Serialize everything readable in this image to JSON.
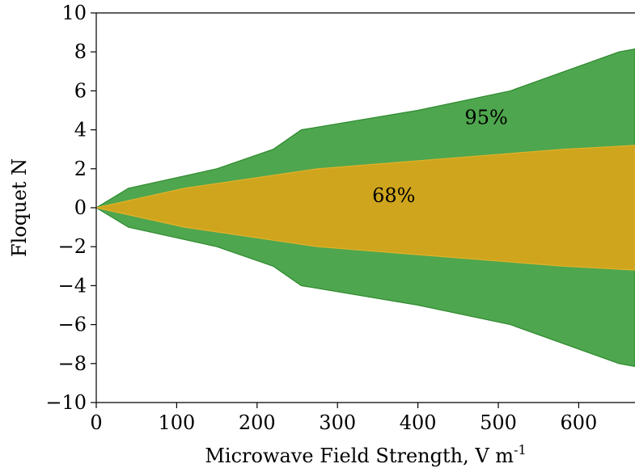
{
  "chart_data": {
    "type": "area",
    "title": "",
    "xlabel": "Microwave Field Strength, V m",
    "xlabel_superscript": "-1",
    "ylabel": "Floquet N",
    "xlim": [
      0,
      670
    ],
    "ylim": [
      -10,
      10
    ],
    "xticks": [
      0,
      100,
      200,
      300,
      400,
      500,
      600
    ],
    "yticks": [
      -10,
      -8,
      -6,
      -4,
      -2,
      0,
      2,
      4,
      6,
      8,
      10
    ],
    "xtick_labels": [
      "0",
      "100",
      "200",
      "300",
      "400",
      "500",
      "600"
    ],
    "ytick_labels": [
      "−10",
      "−8",
      "−6",
      "−4",
      "−2",
      "0",
      "2",
      "4",
      "6",
      "8",
      "10"
    ],
    "grid": false,
    "series": [
      {
        "label": "95%",
        "color": "#4ea64e",
        "x": [
          0,
          40,
          150,
          220,
          255,
          400,
          515,
          650,
          670
        ],
        "upper": [
          0,
          1,
          2,
          3,
          4,
          5,
          6,
          8,
          8.15
        ],
        "lower": [
          0,
          -1,
          -2,
          -3,
          -4,
          -5,
          -6,
          -8,
          -8.15
        ]
      },
      {
        "label": "68%",
        "color": "#cfa51e",
        "x": [
          0,
          110,
          275,
          580,
          670
        ],
        "upper": [
          0,
          1,
          2,
          3,
          3.2
        ],
        "lower": [
          0,
          -1,
          -2,
          -3,
          -3.2
        ]
      }
    ],
    "annotations": [
      {
        "text": "95%",
        "x": 485,
        "y": 4.3
      },
      {
        "text": "68%",
        "x": 370,
        "y": 0.3
      }
    ]
  }
}
